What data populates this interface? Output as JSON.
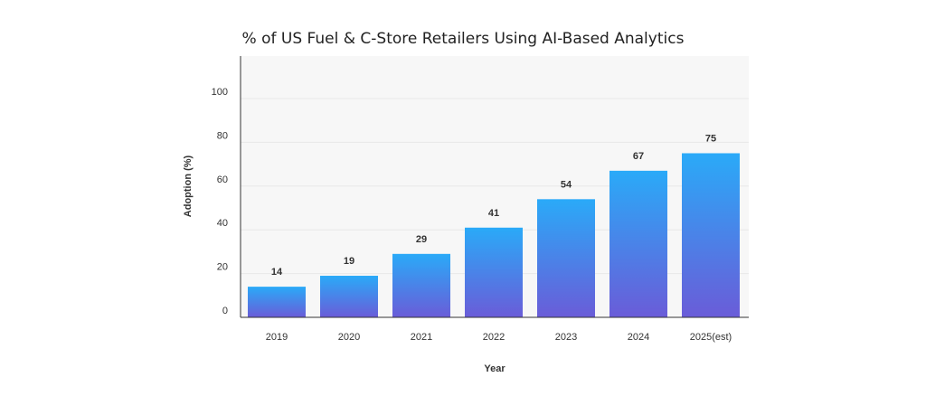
{
  "chart_data": {
    "type": "bar",
    "title": "% of US Fuel & C-Store Retailers Using AI-Based Analytics",
    "xlabel": "Year",
    "ylabel": "Adoption (%)",
    "categories": [
      "2019",
      "2020",
      "2021",
      "2022",
      "2023",
      "2024",
      "2025(est)"
    ],
    "values": [
      14,
      19,
      29,
      41,
      54,
      67,
      75
    ],
    "ylim": [
      0,
      100
    ],
    "yticks": [
      0,
      20,
      40,
      60,
      80,
      100
    ],
    "grid": true,
    "colors": {
      "bar_top": "#2aaaf8",
      "bar_bottom": "#6a5cd8",
      "plot_bg": "#f7f7f7",
      "grid": "#e8e8e8",
      "axis": "#333333"
    }
  }
}
